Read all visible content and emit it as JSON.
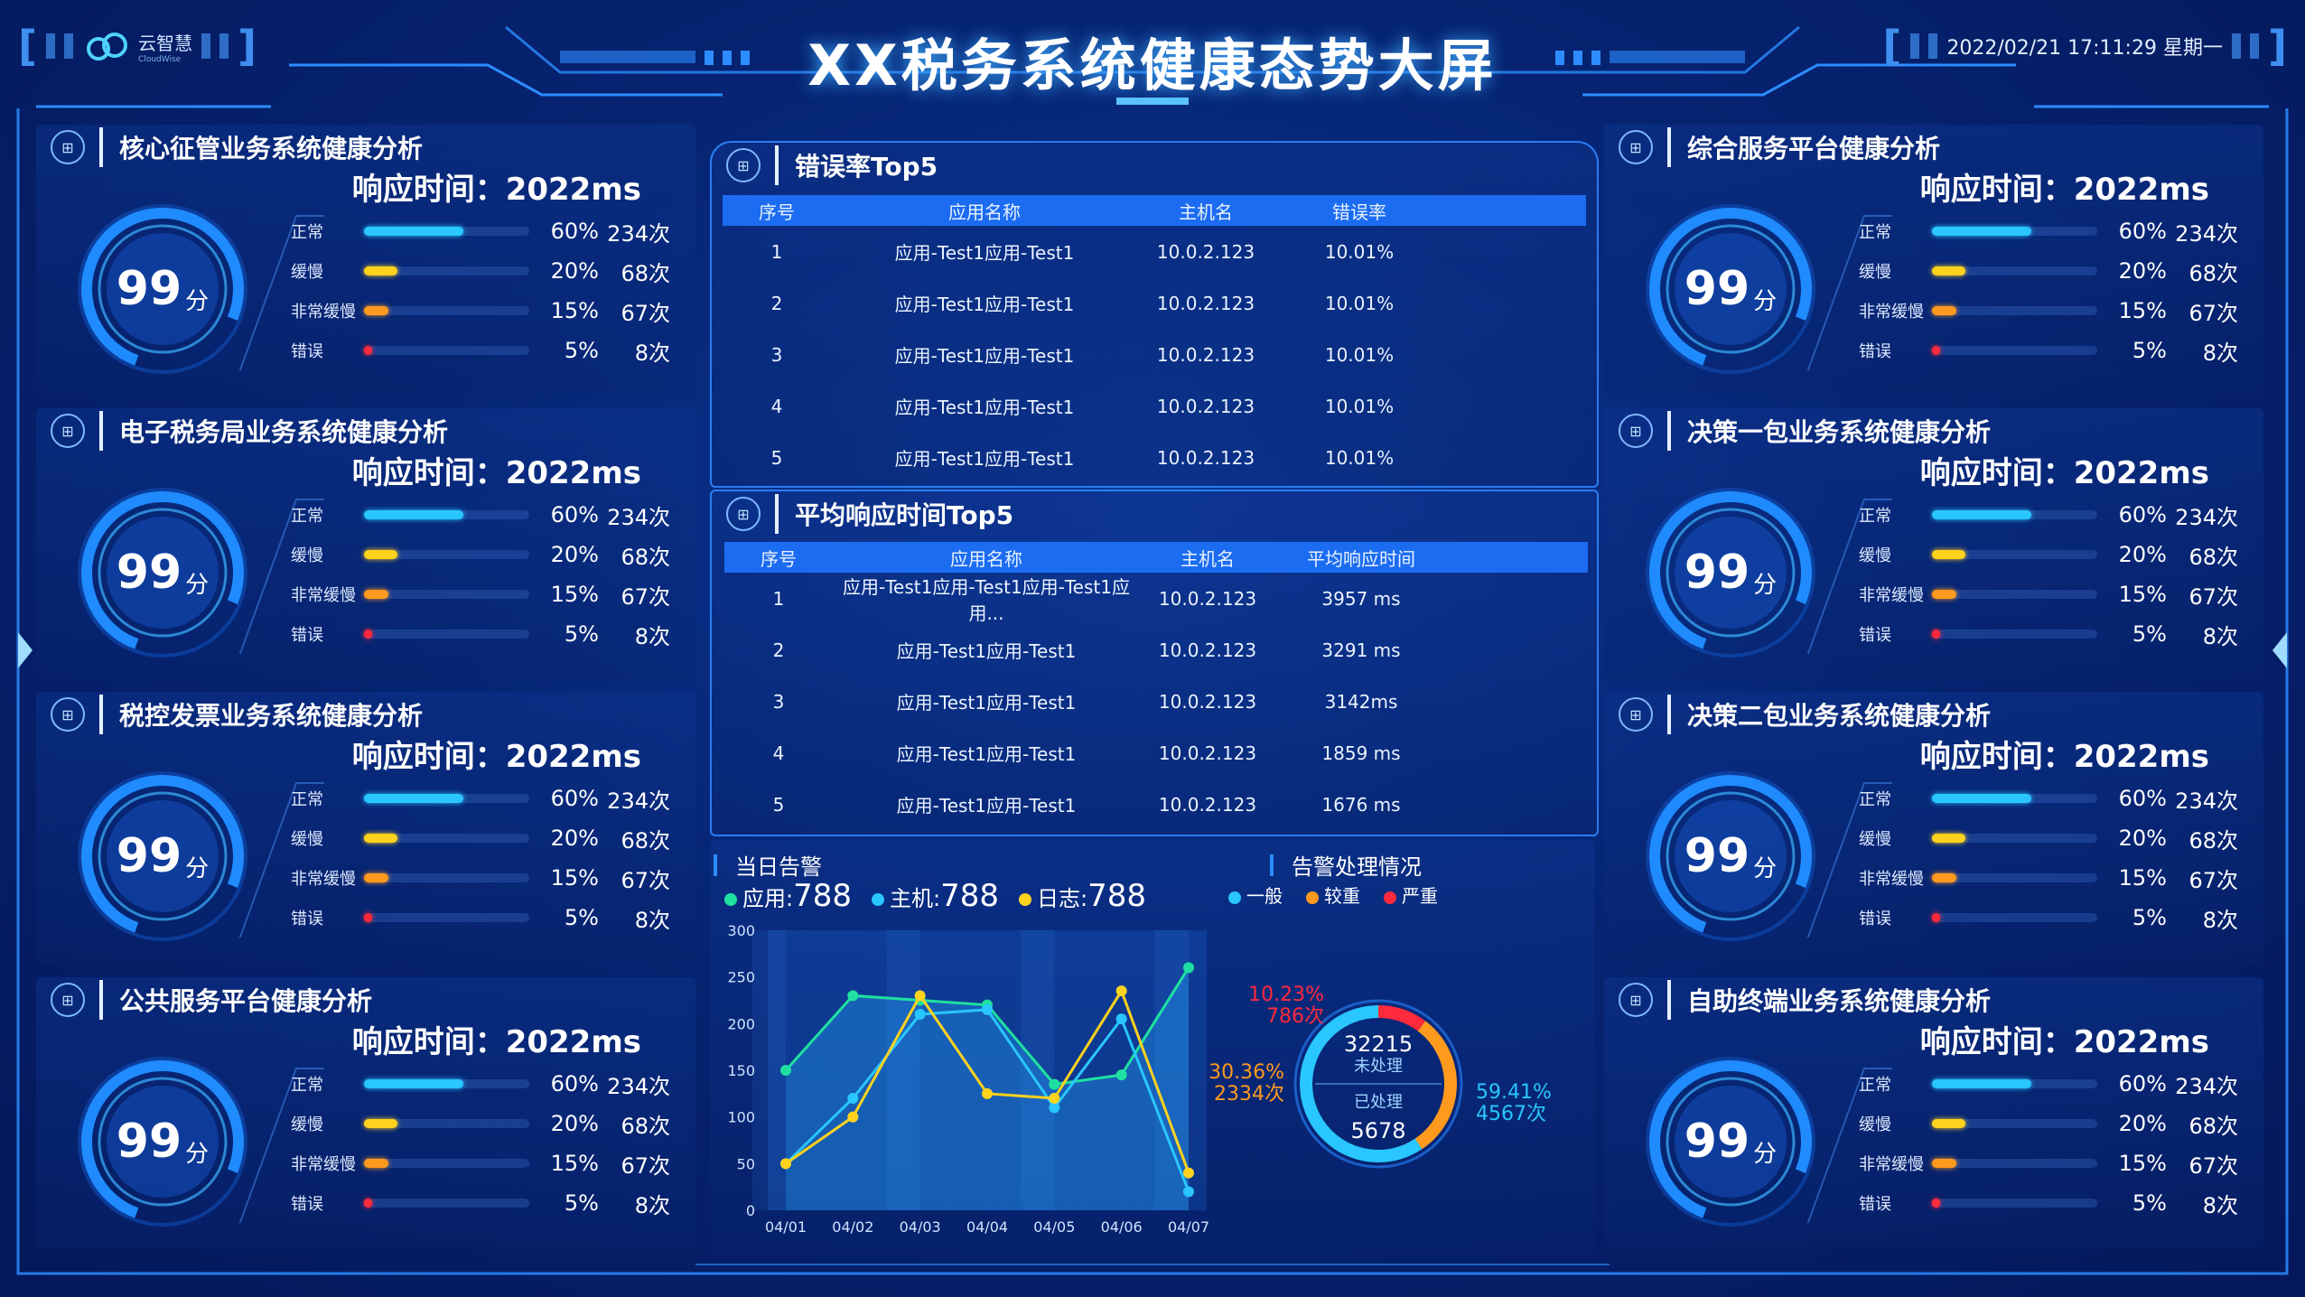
{
  "header": {
    "title": "XX税务系统健康态势大屏",
    "logo_text": "云智慧",
    "logo_sub": "CloudWise",
    "datetime": "2022/02/21 17:11:29  星期一"
  },
  "labels": {
    "resp_prefix": "响应时间：",
    "score_unit": "分"
  },
  "panels_left": [
    {
      "title": "核心征管业务系统健康分析",
      "response": "2022ms",
      "score": "99"
    },
    {
      "title": "电子税务局业务系统健康分析",
      "response": "2022ms",
      "score": "99"
    },
    {
      "title": "税控发票业务系统健康分析",
      "response": "2022ms",
      "score": "99"
    },
    {
      "title": "公共服务平台健康分析",
      "response": "2022ms",
      "score": "99"
    }
  ],
  "panels_right": [
    {
      "title": "综合服务平台健康分析",
      "response": "2022ms",
      "score": "99"
    },
    {
      "title": "决策一包业务系统健康分析",
      "response": "2022ms",
      "score": "99"
    },
    {
      "title": "决策二包业务系统健康分析",
      "response": "2022ms",
      "score": "99"
    },
    {
      "title": "自助终端业务系统健康分析",
      "response": "2022ms",
      "score": "99"
    }
  ],
  "health_rows": [
    {
      "label": "正常",
      "pct": "60%",
      "count": "234次",
      "fill": 0.6,
      "color": "#29c6ff"
    },
    {
      "label": "缓慢",
      "pct": "20%",
      "count": "68次",
      "fill": 0.2,
      "color": "#ffd21e"
    },
    {
      "label": "非常缓慢",
      "pct": "15%",
      "count": "67次",
      "fill": 0.15,
      "color": "#ff9a1f"
    },
    {
      "label": "错误",
      "pct": "5%",
      "count": "8次",
      "fill": 0.05,
      "color": "#ff2a3c"
    }
  ],
  "error_table": {
    "title": "错误率Top5",
    "headers": [
      "序号",
      "应用名称",
      "主机名",
      "错误率"
    ],
    "rows": [
      [
        "1",
        "应用-Test1应用-Test1",
        "10.0.2.123",
        "10.01%"
      ],
      [
        "2",
        "应用-Test1应用-Test1",
        "10.0.2.123",
        "10.01%"
      ],
      [
        "3",
        "应用-Test1应用-Test1",
        "10.0.2.123",
        "10.01%"
      ],
      [
        "4",
        "应用-Test1应用-Test1",
        "10.0.2.123",
        "10.01%"
      ],
      [
        "5",
        "应用-Test1应用-Test1",
        "10.0.2.123",
        "10.01%"
      ]
    ]
  },
  "resp_table": {
    "title": "平均响应时间Top5",
    "headers": [
      "序号",
      "应用名称",
      "主机名",
      "平均响应时间"
    ],
    "rows": [
      [
        "1",
        "应用-Test1应用-Test1应用-Test1应用...",
        "10.0.2.123",
        "3957 ms"
      ],
      [
        "2",
        "应用-Test1应用-Test1",
        "10.0.2.123",
        "3291 ms"
      ],
      [
        "3",
        "应用-Test1应用-Test1",
        "10.0.2.123",
        "3142ms"
      ],
      [
        "4",
        "应用-Test1应用-Test1",
        "10.0.2.123",
        "1859 ms"
      ],
      [
        "5",
        "应用-Test1应用-Test1",
        "10.0.2.123",
        "1676 ms"
      ]
    ]
  },
  "alarm": {
    "title": "当日告警",
    "stats": [
      {
        "label": "应用:",
        "value": "788",
        "color": "#1fe0a0"
      },
      {
        "label": "主机:",
        "value": "788",
        "color": "#29c6ff"
      },
      {
        "label": "日志:",
        "value": "788",
        "color": "#ffd21e"
      }
    ]
  },
  "handling": {
    "title": "告警处理情况",
    "legend": [
      {
        "label": "一般",
        "color": "#29c6ff"
      },
      {
        "label": "较重",
        "color": "#ff9a1f"
      },
      {
        "label": "严重",
        "color": "#ff2a3c"
      }
    ],
    "unprocessed_value": "32215",
    "unprocessed_label": "未处理",
    "processed_label": "已处理",
    "processed_value": "5678",
    "segments": [
      {
        "pct": "10.23%",
        "count": "786次",
        "fraction": 0.1023,
        "color": "#ff2a3c"
      },
      {
        "pct": "30.36%",
        "count": "2334次",
        "fraction": 0.3036,
        "color": "#ff9a1f"
      },
      {
        "pct": "59.41%",
        "count": "4567次",
        "fraction": 0.5941,
        "color": "#29c6ff"
      }
    ]
  },
  "chart_data": {
    "type": "line",
    "x": [
      "04/01",
      "04/02",
      "04/03",
      "04/04",
      "04/05",
      "04/06",
      "04/07"
    ],
    "ylim": [
      0,
      300
    ],
    "yticks": [
      0,
      50,
      100,
      150,
      200,
      250,
      300
    ],
    "grid": false,
    "series": [
      {
        "name": "应用",
        "color": "#1fe0a0",
        "values": [
          150,
          230,
          225,
          220,
          135,
          145,
          260
        ]
      },
      {
        "name": "主机",
        "color": "#29c6ff",
        "values": [
          50,
          120,
          210,
          215,
          110,
          205,
          20
        ]
      },
      {
        "name": "日志",
        "color": "#ffd21e",
        "values": [
          50,
          100,
          230,
          125,
          120,
          235,
          40
        ]
      }
    ]
  }
}
